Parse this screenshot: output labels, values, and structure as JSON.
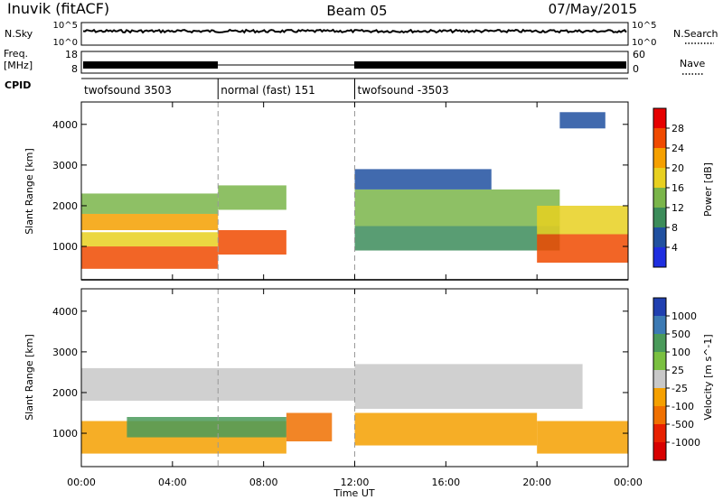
{
  "header": {
    "station": "Inuvik (fitACF)",
    "beam": "Beam 05",
    "date": "07/May/2015"
  },
  "strips": {
    "nsky_label": "N.Sky",
    "nsky_ticks": [
      "10^5",
      "10^0"
    ],
    "nsearch_label": "N.Search",
    "nsearch_ticks": [
      "10^5",
      "10^0"
    ],
    "freq_label_1": "Freq.",
    "freq_label_2": "[MHz]",
    "freq_ticks": [
      "18",
      "8"
    ],
    "nave_label": "Nave",
    "nave_ticks": [
      "60",
      "0"
    ],
    "cpid_label": "CPID",
    "cpid_segments": [
      {
        "label": "twofsound 3503",
        "start": 0,
        "end": 6
      },
      {
        "label": "normal (fast) 151",
        "start": 6,
        "end": 12
      },
      {
        "label": "twofsound -3503",
        "start": 12,
        "end": 24
      }
    ]
  },
  "chart_data": [
    {
      "type": "heatmap",
      "ylabel": "Slant Range [km]",
      "colorbar_label": "Power [dB]",
      "colorbar_ticks": [
        "28",
        "24",
        "20",
        "16",
        "12",
        "8",
        "4"
      ],
      "colorbar_colors": [
        "#e60000",
        "#f04a00",
        "#f5a000",
        "#e8d020",
        "#7ab54a",
        "#3c8c5a",
        "#2050a0",
        "#1e2ee0"
      ],
      "yticks": [
        "4000",
        "3000",
        "2000",
        "1000"
      ],
      "ylim": [
        180,
        4550
      ],
      "xlim": [
        0,
        24
      ],
      "bands": [
        {
          "t0": 0,
          "t1": 6,
          "r0": 450,
          "r1": 1000,
          "value": 28
        },
        {
          "t0": 0,
          "t1": 6,
          "r0": 1000,
          "r1": 1350,
          "value": 20
        },
        {
          "t0": 0,
          "t1": 6,
          "r0": 1400,
          "r1": 1800,
          "value": 22
        },
        {
          "t0": 0,
          "t1": 6,
          "r0": 1800,
          "r1": 2300,
          "value": 16
        },
        {
          "t0": 6,
          "t1": 9,
          "r0": 800,
          "r1": 1400,
          "value": 26
        },
        {
          "t0": 6,
          "t1": 9,
          "r0": 1900,
          "r1": 2500,
          "value": 14
        },
        {
          "t0": 12,
          "t1": 21,
          "r0": 900,
          "r1": 1500,
          "value": 12
        },
        {
          "t0": 12,
          "t1": 21,
          "r0": 1500,
          "r1": 2400,
          "value": 14
        },
        {
          "t0": 12,
          "t1": 18,
          "r0": 2400,
          "r1": 2900,
          "value": 8
        },
        {
          "t0": 20,
          "t1": 24,
          "r0": 600,
          "r1": 1300,
          "value": 28
        },
        {
          "t0": 20,
          "t1": 24,
          "r0": 1300,
          "r1": 2000,
          "value": 20
        },
        {
          "t0": 21,
          "t1": 23,
          "r0": 3900,
          "r1": 4300,
          "value": 6
        }
      ]
    },
    {
      "type": "heatmap",
      "ylabel": "Slant Range [km]",
      "colorbar_label": "Velocity [m s^-1]",
      "colorbar_ticks": [
        "1000",
        "500",
        "100",
        "25",
        "-25",
        "-100",
        "-500",
        "-1000"
      ],
      "colorbar_colors": [
        "#2040b0",
        "#3c7ab4",
        "#4a9a5a",
        "#7ac040",
        "#c8c8c8",
        "#f5a000",
        "#f07000",
        "#e82000",
        "#d80000"
      ],
      "yticks": [
        "4000",
        "3000",
        "2000",
        "1000"
      ],
      "ylim": [
        180,
        4550
      ],
      "xlim": [
        0,
        24
      ],
      "bands": [
        {
          "t0": 0,
          "t1": 9,
          "r0": 500,
          "r1": 1300,
          "value": -100
        },
        {
          "t0": 2,
          "t1": 9,
          "r0": 900,
          "r1": 1400,
          "value": 100
        },
        {
          "t0": 0,
          "t1": 12,
          "r0": 1800,
          "r1": 2600,
          "value": 0
        },
        {
          "t0": 9,
          "t1": 11,
          "r0": 800,
          "r1": 1500,
          "value": -500
        },
        {
          "t0": 12,
          "t1": 22,
          "r0": 1600,
          "r1": 2700,
          "value": 0
        },
        {
          "t0": 12,
          "t1": 20,
          "r0": 700,
          "r1": 1500,
          "value": -100
        },
        {
          "t0": 20,
          "t1": 24,
          "r0": 500,
          "r1": 1300,
          "value": -100
        }
      ]
    }
  ],
  "xaxis": {
    "label": "Time UT",
    "ticks": [
      "00:00",
      "04:00",
      "08:00",
      "12:00",
      "16:00",
      "20:00",
      "00:00"
    ]
  }
}
